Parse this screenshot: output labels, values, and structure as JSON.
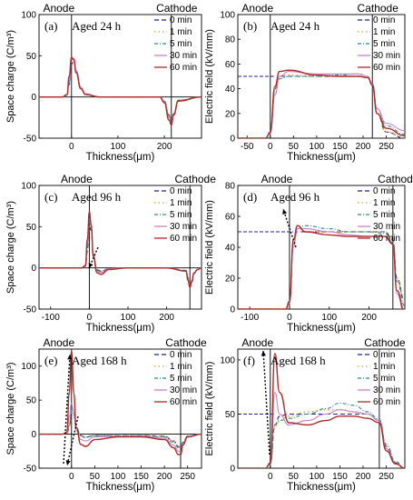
{
  "figure": "six-panel space charge and electric field profiles",
  "colors": {
    "0 min": "#1f1f9a",
    "1 min": "#d8a21a",
    "5 min": "#2c8c8c",
    "30 min": "#c87fc8",
    "60 min": "#b02a2a"
  },
  "chart_data": [
    {
      "type": "line",
      "panel": "(a)",
      "title": "Aged 24 h",
      "xlabel": "Thickness(μm)",
      "ylabel": "Space charge (C/m³)",
      "xlim": [
        -70,
        280
      ],
      "ylim": [
        -50,
        100
      ],
      "xticks": [
        0,
        100,
        200
      ],
      "yticks": [
        -50,
        0,
        50,
        100
      ],
      "markers": {
        "Anode": 0,
        "Cathode": 215
      },
      "legend": [
        "0 min",
        "1 min",
        "5 min",
        "30 min",
        "60 min"
      ],
      "x": [
        -70,
        -20,
        -10,
        -5,
        0,
        5,
        10,
        20,
        30,
        60,
        100,
        150,
        190,
        200,
        210,
        215,
        220,
        230,
        280
      ],
      "series": [
        {
          "name": "0 min",
          "values": [
            0,
            0,
            2,
            15,
            40,
            44,
            28,
            10,
            3,
            0,
            0,
            0,
            0,
            -5,
            -22,
            -30,
            -20,
            -4,
            0
          ]
        },
        {
          "name": "1 min",
          "values": [
            0,
            0,
            2,
            16,
            42,
            45,
            29,
            10,
            3,
            0,
            0,
            0,
            0,
            -5,
            -22,
            -31,
            -20,
            -4,
            0
          ]
        },
        {
          "name": "5 min",
          "values": [
            0,
            0,
            2,
            17,
            44,
            46,
            30,
            11,
            3,
            0,
            0,
            0,
            0,
            -5,
            -23,
            -32,
            -21,
            -4,
            0
          ]
        },
        {
          "name": "30 min",
          "values": [
            0,
            0,
            3,
            20,
            46,
            47,
            32,
            12,
            4,
            0,
            0,
            0,
            0,
            -6,
            -25,
            -33,
            -22,
            -5,
            0
          ]
        },
        {
          "name": "60 min",
          "values": [
            0,
            0,
            3,
            25,
            48,
            45,
            30,
            10,
            3,
            0,
            0,
            0,
            0,
            -7,
            -28,
            -34,
            -22,
            -5,
            0
          ]
        }
      ]
    },
    {
      "type": "line",
      "panel": "(b)",
      "title": "Aged 24 h",
      "xlabel": "Thickness(μm)",
      "ylabel": "Electric field (kV/mm)",
      "xlim": [
        -70,
        290
      ],
      "ylim": [
        0,
        100
      ],
      "xticks": [
        -50,
        0,
        50,
        100,
        150,
        200,
        250
      ],
      "yticks": [
        0,
        20,
        40,
        60,
        80,
        100
      ],
      "markers": {
        "Anode": 0,
        "Cathode": 220
      },
      "legend": [
        "0 min",
        "1 min",
        "5 min",
        "30 min",
        "60 min"
      ],
      "x": [
        -70,
        -10,
        0,
        10,
        20,
        40,
        100,
        150,
        190,
        210,
        220,
        230,
        250,
        290
      ],
      "series": [
        {
          "name": "0 min",
          "values": [
            0,
            0,
            5,
            40,
            50,
            50,
            50,
            50,
            50,
            49,
            44,
            20,
            5,
            0
          ]
        },
        {
          "name": "1 min",
          "values": [
            0,
            0,
            5,
            40,
            50,
            51,
            50,
            50,
            50,
            49,
            44,
            20,
            5,
            0
          ]
        },
        {
          "name": "5 min",
          "values": [
            0,
            0,
            4,
            35,
            48,
            50,
            50,
            51,
            52,
            50,
            44,
            24,
            10,
            3
          ]
        },
        {
          "name": "30 min",
          "values": [
            0,
            0,
            4,
            35,
            50,
            54,
            52,
            52,
            52,
            50,
            44,
            24,
            12,
            6
          ]
        },
        {
          "name": "60 min",
          "values": [
            0,
            0,
            5,
            42,
            54,
            55,
            51,
            50,
            50,
            49,
            43,
            20,
            8,
            2
          ]
        }
      ]
    },
    {
      "type": "line",
      "panel": "(c)",
      "title": "Aged 96 h",
      "xlabel": "Thickness(μm)",
      "ylabel": "Space charge (C/m³)",
      "xlim": [
        -130,
        290
      ],
      "ylim": [
        -50,
        100
      ],
      "xticks": [
        -100,
        0,
        100,
        200
      ],
      "yticks": [
        -50,
        0,
        50,
        100
      ],
      "markers": {
        "Anode": 0,
        "Cathode": 260
      },
      "legend": [
        "0 min",
        "1 min",
        "5 min",
        "30 min",
        "60 min"
      ],
      "x": [
        -130,
        -20,
        -10,
        -5,
        0,
        5,
        10,
        20,
        30,
        50,
        100,
        200,
        250,
        255,
        260,
        265,
        270,
        280,
        290
      ],
      "series": [
        {
          "name": "0 min",
          "values": [
            0,
            0,
            2,
            20,
            50,
            45,
            15,
            -2,
            -4,
            -1,
            0,
            0,
            -3,
            -12,
            -20,
            -15,
            -6,
            -2,
            0
          ]
        },
        {
          "name": "1 min",
          "values": [
            0,
            0,
            2,
            22,
            52,
            47,
            16,
            -2,
            -4,
            -1,
            0,
            0,
            -3,
            -12,
            -21,
            -15,
            -6,
            -2,
            0
          ]
        },
        {
          "name": "5 min",
          "values": [
            0,
            0,
            2,
            24,
            55,
            48,
            17,
            -3,
            -5,
            -1,
            0,
            0,
            -3,
            -13,
            -22,
            -16,
            -6,
            -2,
            0
          ]
        },
        {
          "name": "30 min",
          "values": [
            0,
            0,
            3,
            30,
            60,
            50,
            15,
            -4,
            -6,
            -1,
            0,
            0,
            -4,
            -14,
            -23,
            -16,
            -6,
            -2,
            0
          ]
        },
        {
          "name": "60 min",
          "values": [
            0,
            0,
            3,
            35,
            68,
            52,
            14,
            -6,
            -8,
            -2,
            0,
            0,
            -4,
            -15,
            -24,
            -17,
            -7,
            -2,
            0
          ]
        }
      ]
    },
    {
      "type": "line",
      "panel": "(d)",
      "title": "Aged 96 h",
      "xlabel": "Thickness(μm)",
      "ylabel": "Electric field (kV/mm)",
      "xlim": [
        -130,
        290
      ],
      "ylim": [
        0,
        80
      ],
      "xticks": [
        -100,
        0,
        100,
        200
      ],
      "yticks": [
        0,
        20,
        40,
        60,
        80
      ],
      "markers": {
        "Anode": 0,
        "Cathode": 260
      },
      "legend": [
        "0 min",
        "1 min",
        "5 min",
        "30 min",
        "60 min"
      ],
      "x": [
        -130,
        -10,
        0,
        10,
        20,
        40,
        100,
        150,
        200,
        240,
        260,
        270,
        290
      ],
      "series": [
        {
          "name": "0 min",
          "values": [
            0,
            0,
            5,
            45,
            50,
            50,
            50,
            50,
            50,
            50,
            45,
            20,
            5
          ]
        },
        {
          "name": "1 min",
          "values": [
            0,
            0,
            5,
            44,
            50,
            50,
            50,
            50,
            50,
            50,
            45,
            20,
            5
          ]
        },
        {
          "name": "5 min",
          "values": [
            0,
            0,
            4,
            42,
            52,
            54,
            52,
            50,
            50,
            49,
            43,
            18,
            2
          ]
        },
        {
          "name": "30 min",
          "values": [
            0,
            0,
            4,
            40,
            52,
            52,
            50,
            48,
            47,
            47,
            42,
            10,
            -4
          ]
        },
        {
          "name": "60 min",
          "values": [
            0,
            0,
            5,
            45,
            54,
            50,
            48,
            47,
            47,
            47,
            42,
            12,
            -2
          ]
        }
      ]
    },
    {
      "type": "line",
      "panel": "(e)",
      "title": "Aged 168 h",
      "xlabel": "Thickness(μm)",
      "ylabel": "Space charge (C/m³)",
      "xlim": [
        -70,
        280
      ],
      "ylim": [
        -50,
        125
      ],
      "xticks": [
        0,
        50,
        100,
        150,
        200,
        250
      ],
      "yticks": [
        -50,
        0,
        50,
        100
      ],
      "markers": {
        "Anode": 0,
        "Cathode": 235
      },
      "legend": [
        "0 min",
        "1 min",
        "5 min",
        "30 min",
        "60 min"
      ],
      "x": [
        -70,
        -20,
        -10,
        -5,
        0,
        5,
        10,
        20,
        30,
        50,
        100,
        150,
        200,
        220,
        230,
        235,
        240,
        250,
        280
      ],
      "series": [
        {
          "name": "0 min",
          "values": [
            0,
            0,
            1,
            10,
            30,
            28,
            10,
            -2,
            -4,
            -2,
            -2,
            -2,
            -3,
            -10,
            -18,
            -20,
            -12,
            -3,
            0
          ]
        },
        {
          "name": "1 min",
          "values": [
            0,
            0,
            1,
            12,
            32,
            30,
            10,
            -2,
            -4,
            -2,
            -2,
            -2,
            -3,
            -10,
            -18,
            -20,
            -12,
            -3,
            0
          ]
        },
        {
          "name": "5 min",
          "values": [
            0,
            0,
            1,
            14,
            35,
            30,
            10,
            -3,
            -5,
            -2,
            -2,
            -2,
            -4,
            -12,
            -20,
            -22,
            -12,
            -3,
            0
          ]
        },
        {
          "name": "30 min",
          "values": [
            0,
            0,
            2,
            25,
            45,
            32,
            6,
            -8,
            -10,
            -4,
            -3,
            -3,
            -6,
            -16,
            -25,
            -26,
            -14,
            -4,
            0
          ]
        },
        {
          "name": "60 min",
          "values": [
            0,
            0,
            3,
            60,
            122,
            60,
            10,
            -15,
            -18,
            -8,
            -4,
            -4,
            -8,
            -20,
            -30,
            -30,
            -16,
            -4,
            0
          ]
        }
      ]
    },
    {
      "type": "line",
      "panel": "(f)",
      "title": "Aged 168 h",
      "xlabel": "Thickness(μm)",
      "ylabel": "Electric field (kV/mm)",
      "xlim": [
        -70,
        290
      ],
      "ylim": [
        0,
        110
      ],
      "xticks": [
        0,
        50,
        100,
        150,
        200,
        250
      ],
      "yticks": [
        0,
        50,
        100
      ],
      "markers": {
        "Anode": 0,
        "Cathode": 235
      },
      "legend": [
        "0 min",
        "1 min",
        "5 min",
        "30 min",
        "60 min"
      ],
      "x": [
        -70,
        -10,
        0,
        10,
        20,
        40,
        80,
        120,
        150,
        180,
        210,
        235,
        250,
        270,
        290
      ],
      "series": [
        {
          "name": "0 min",
          "values": [
            0,
            0,
            4,
            40,
            48,
            50,
            50,
            50,
            50,
            50,
            50,
            44,
            20,
            5,
            0
          ]
        },
        {
          "name": "1 min",
          "values": [
            0,
            0,
            4,
            38,
            44,
            48,
            52,
            54,
            54,
            52,
            50,
            44,
            20,
            5,
            0
          ]
        },
        {
          "name": "5 min",
          "values": [
            0,
            0,
            4,
            40,
            44,
            46,
            50,
            55,
            60,
            58,
            52,
            45,
            22,
            6,
            0
          ]
        },
        {
          "name": "30 min",
          "values": [
            0,
            0,
            5,
            70,
            50,
            40,
            44,
            50,
            54,
            52,
            50,
            44,
            18,
            4,
            0
          ]
        },
        {
          "name": "60 min",
          "values": [
            0,
            0,
            5,
            106,
            70,
            42,
            40,
            44,
            48,
            48,
            46,
            42,
            16,
            4,
            0
          ]
        }
      ]
    }
  ]
}
